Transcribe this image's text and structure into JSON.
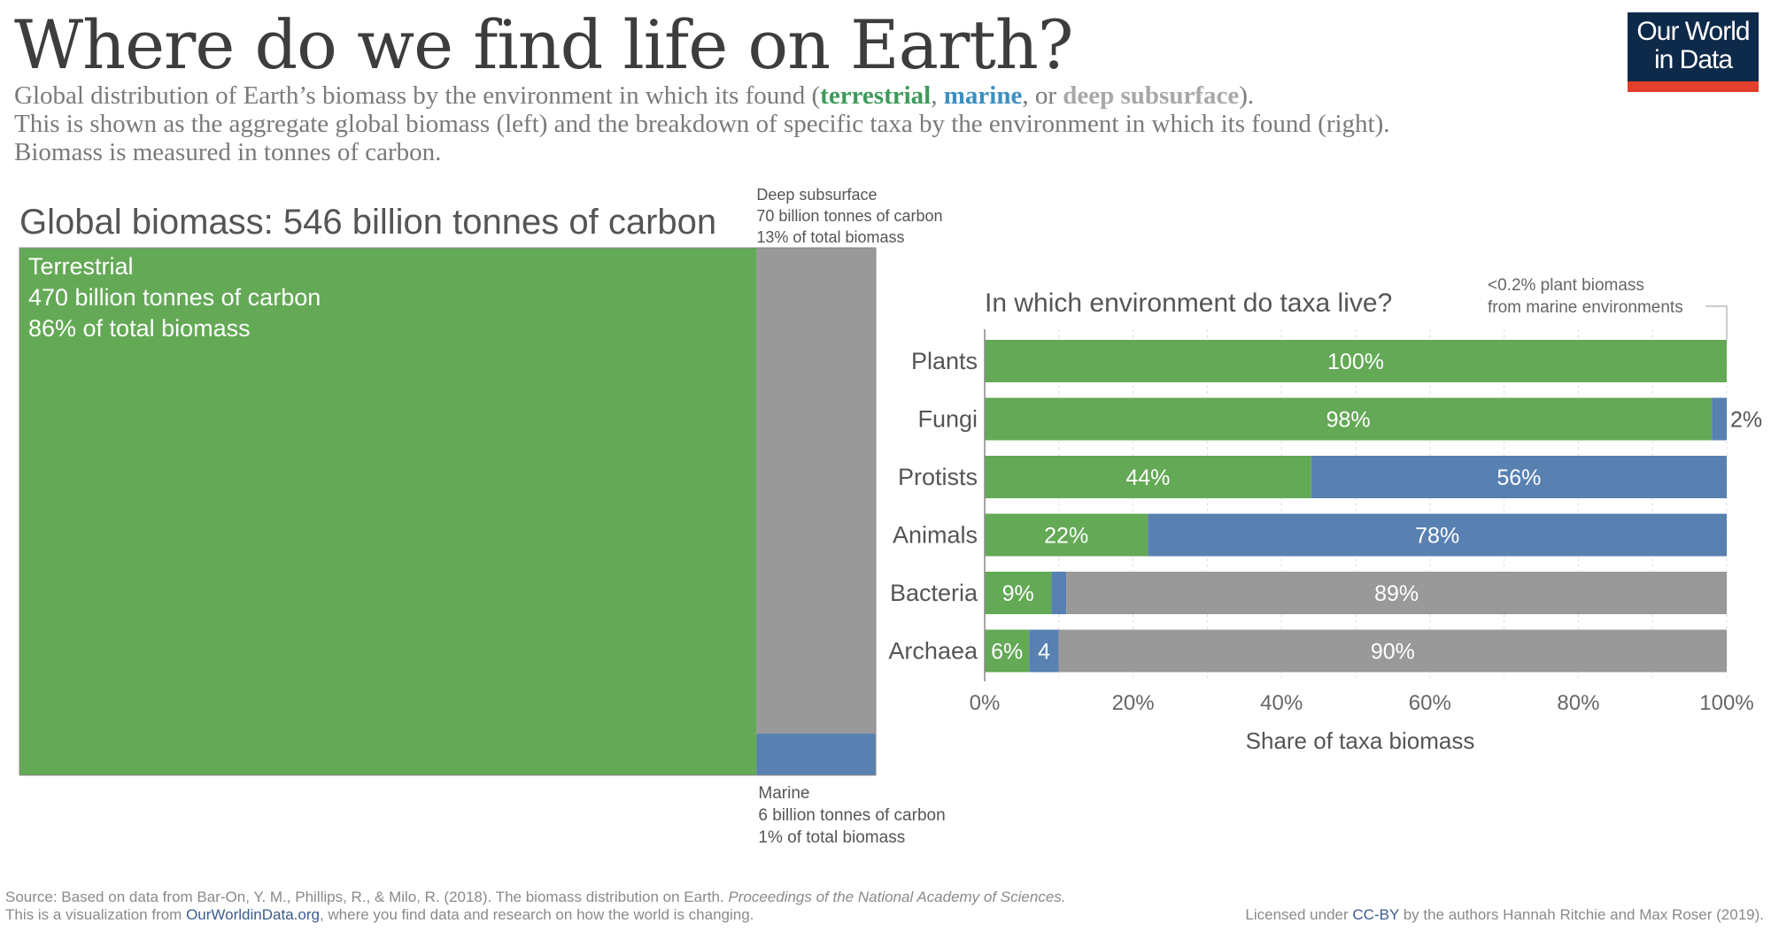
{
  "title": "Where do we find life on Earth?",
  "subtitle": {
    "line1_prefix": "Global distribution of Earth’s biomass by the environment in which its found (",
    "kw_terrestrial": "terrestrial",
    "sep1": ", ",
    "kw_marine": "marine",
    "sep2": ", or ",
    "kw_deep": "deep subsurface",
    "line1_suffix": ").",
    "line2": "This is shown as the aggregate global biomass (left) and the breakdown of specific taxa by the environment in which its found (right).",
    "line3": "Biomass is measured in tonnes of carbon."
  },
  "logo": {
    "line1": "Our World",
    "line2": "in Data"
  },
  "colors": {
    "terrestrial": "#64a956",
    "marine": "#5880b1",
    "deep": "#999999"
  },
  "chart_data": [
    {
      "type": "treemap",
      "title": "Global biomass: 546 billion tonnes of carbon",
      "total": 546,
      "unit": "billion tonnes of carbon",
      "segments": [
        {
          "name": "Terrestrial",
          "value": 470,
          "share_label": "86% of total biomass",
          "value_label": "470 billion tonnes of carbon",
          "color": "#64a956"
        },
        {
          "name": "Deep subsurface",
          "value": 70,
          "share_label": "13% of total biomass",
          "value_label": "70 billion tonnes of carbon",
          "color": "#999999"
        },
        {
          "name": "Marine",
          "value": 6,
          "share_label": "1% of total biomass",
          "value_label": "6 billion tonnes of carbon",
          "color": "#5880b1"
        }
      ]
    },
    {
      "type": "bar",
      "stacked": true,
      "orientation": "horizontal",
      "title": "In which environment do taxa live?",
      "xlabel": "Share of taxa biomass",
      "xlim": [
        0,
        100
      ],
      "xticks": [
        "0%",
        "20%",
        "40%",
        "60%",
        "80%",
        "100%"
      ],
      "categories": [
        "Plants",
        "Fungi",
        "Protists",
        "Animals",
        "Bacteria",
        "Archaea"
      ],
      "series": [
        {
          "name": "terrestrial",
          "color": "#64a956",
          "values": [
            100,
            98,
            44,
            22,
            9,
            6
          ],
          "labels": [
            "100%",
            "98%",
            "44%",
            "22%",
            "9%",
            "6%"
          ]
        },
        {
          "name": "marine",
          "color": "#5880b1",
          "values": [
            0,
            2,
            56,
            78,
            2,
            4
          ],
          "labels": [
            "",
            "2%",
            "56%",
            "78%",
            "",
            "4"
          ]
        },
        {
          "name": "deep subsurface",
          "color": "#999999",
          "values": [
            0,
            0,
            0,
            0,
            89,
            90
          ],
          "labels": [
            "",
            "",
            "",
            "",
            "89%",
            "90%"
          ]
        }
      ],
      "annotation": {
        "line1": "<0.2% plant biomass",
        "line2": "from marine environments"
      }
    }
  ],
  "footer": {
    "source_prefix": "Source: Based on data from Bar-On, Y. M., Phillips, R., & Milo, R. (2018). The biomass distribution on Earth. ",
    "source_journal": "Proceedings of the National Academy of Sciences.",
    "viz_prefix": "This is a visualization from ",
    "viz_link": "OurWorldinData.org",
    "viz_suffix": ", where you find data and research on how the world is changing.",
    "license_prefix": "Licensed under ",
    "license_link": "CC-BY",
    "license_suffix": " by the authors Hannah Ritchie and Max Roser (2019)."
  }
}
